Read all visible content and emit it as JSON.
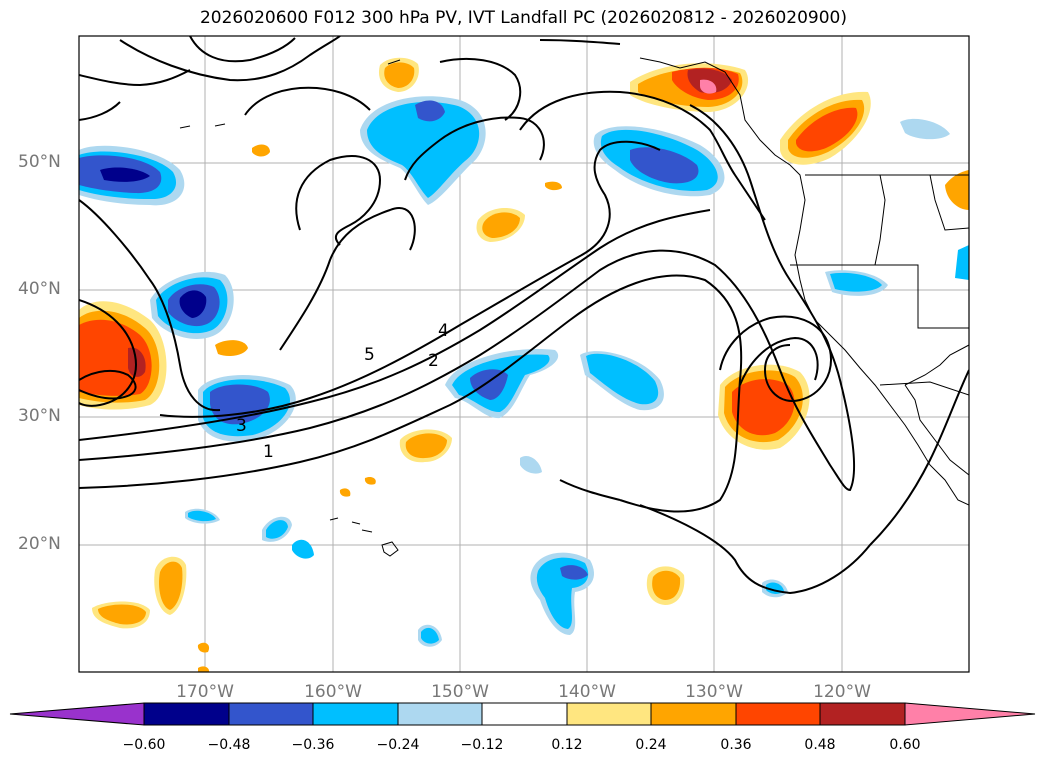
{
  "title": "2026020600 F012 300 hPa PV, IVT Landfall PC (2026020812 - 2026020900)",
  "map": {
    "lat_labels": [
      "50°N",
      "40°N",
      "30°N",
      "20°N"
    ],
    "lon_labels": [
      "170°W",
      "160°W",
      "150°W",
      "140°W",
      "130°W",
      "120°W"
    ],
    "contour_labels": [
      "1",
      "2",
      "3",
      "4",
      "5"
    ]
  },
  "colorbar": {
    "ticks": [
      "−0.60",
      "−0.48",
      "−0.36",
      "−0.24",
      "−0.12",
      "0.12",
      "0.24",
      "0.36",
      "0.48",
      "0.60"
    ],
    "colors": [
      "#9932cc",
      "#00008b",
      "#3355cc",
      "#00bfff",
      "#add8f0",
      "#ffffff",
      "#ffe680",
      "#ffa500",
      "#ff4500",
      "#b22222",
      "#ff80a8"
    ]
  },
  "icons": [
    "map-contours",
    "colorbar"
  ]
}
